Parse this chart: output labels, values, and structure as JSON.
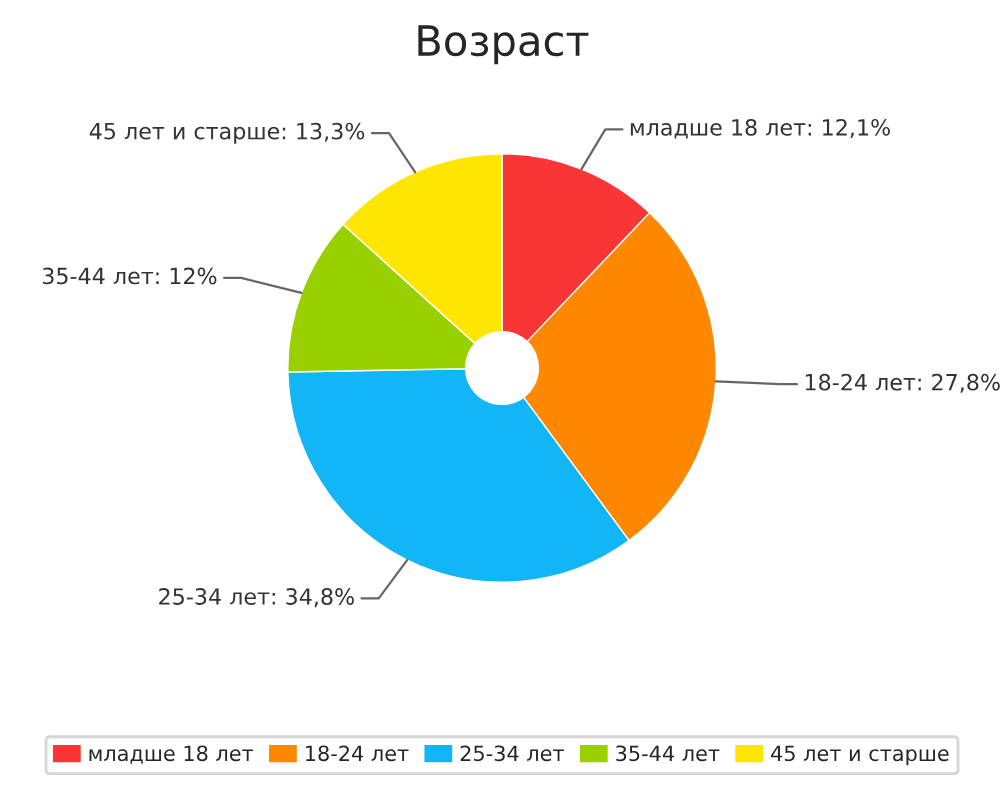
{
  "chart_data": {
    "type": "donut",
    "title": "Возраст",
    "categories": [
      "младше 18 лет",
      "18-24 лет",
      "25-34 лет",
      "35-44 лет",
      "45 лет и старше"
    ],
    "values": [
      12.1,
      27.8,
      34.8,
      12,
      13.3
    ],
    "value_labels": [
      "младше 18 лет: 12,1%",
      "18-24 лет: 27,8%",
      "25-34 лет: 34,8%",
      "35-44 лет: 12%",
      "45 лет и старше: 13,3%"
    ],
    "colors": [
      "#fa3535",
      "#ff8800",
      "#12b5f5",
      "#99d100",
      "#ffe600"
    ],
    "legend": "bottom"
  }
}
